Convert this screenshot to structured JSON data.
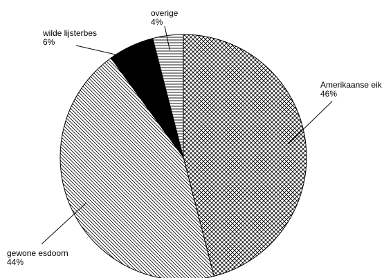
{
  "chart_data": {
    "type": "pie",
    "start_angle_deg": 0,
    "direction": "clockwise",
    "slices": [
      {
        "name": "Amerikaanse eik",
        "value": 46,
        "label_pct": "46%",
        "pattern": "crosshatch"
      },
      {
        "name": "gewone esdoorn",
        "value": 44,
        "label_pct": "44%",
        "pattern": "diagonal"
      },
      {
        "name": "wilde lijsterbes",
        "value": 6,
        "label_pct": "6%",
        "pattern": "solid-black"
      },
      {
        "name": "overige",
        "value": 4,
        "label_pct": "4%",
        "pattern": "horizontal-lines"
      }
    ],
    "colors": {
      "stroke": "#000000",
      "fill": "#ffffff",
      "solid": "#000000"
    }
  }
}
